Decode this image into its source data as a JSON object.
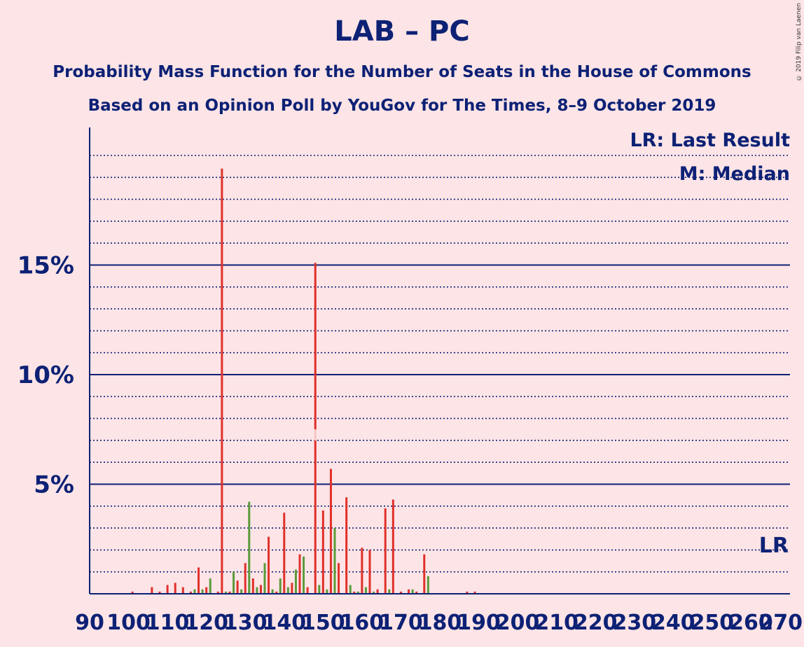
{
  "title": "LAB – PC",
  "subtitle1": "Probability Mass Function for the Number of Seats in the House of Commons",
  "subtitle2": "Based on an Opinion Poll by YouGov for The Times, 8–9 October 2019",
  "copyright": "© 2019 Filip van Laenen",
  "legend": {
    "last_result": "LR: Last Result",
    "median": "M: Median"
  },
  "colors": {
    "background": "#fde4e6",
    "text": "#0d2175",
    "bar_red": "#e0302a",
    "bar_green": "#5a9a3a"
  },
  "chart_data": {
    "type": "bar",
    "xlim": [
      90,
      270
    ],
    "ylim": [
      0,
      21
    ],
    "x_ticks": [
      90,
      100,
      110,
      120,
      130,
      140,
      150,
      160,
      170,
      180,
      190,
      200,
      210,
      220,
      230,
      240,
      250,
      260,
      270
    ],
    "y_ticks": [
      {
        "value": 5,
        "label": "5%"
      },
      {
        "value": 10,
        "label": "10%"
      },
      {
        "value": 15,
        "label": "15%"
      }
    ],
    "y_minor_step": 1,
    "median_seats": 148,
    "last_result_seats": 266,
    "last_result_label": "LR",
    "median_label": "M",
    "bars": [
      {
        "seats": 101,
        "value": 0.1,
        "color": "red"
      },
      {
        "seats": 106,
        "value": 0.3,
        "color": "red"
      },
      {
        "seats": 108,
        "value": 0.1,
        "color": "red"
      },
      {
        "seats": 110,
        "value": 0.4,
        "color": "red"
      },
      {
        "seats": 112,
        "value": 0.5,
        "color": "red"
      },
      {
        "seats": 114,
        "value": 0.3,
        "color": "red"
      },
      {
        "seats": 116,
        "value": 0.1,
        "color": "red"
      },
      {
        "seats": 117,
        "value": 0.2,
        "color": "green"
      },
      {
        "seats": 118,
        "value": 1.2,
        "color": "red"
      },
      {
        "seats": 119,
        "value": 0.2,
        "color": "green"
      },
      {
        "seats": 120,
        "value": 0.3,
        "color": "red"
      },
      {
        "seats": 121,
        "value": 0.7,
        "color": "green"
      },
      {
        "seats": 123,
        "value": 0.1,
        "color": "red"
      },
      {
        "seats": 124,
        "value": 19.4,
        "color": "red"
      },
      {
        "seats": 125,
        "value": 0.1,
        "color": "green"
      },
      {
        "seats": 126,
        "value": 0.1,
        "color": "red"
      },
      {
        "seats": 127,
        "value": 1.0,
        "color": "green"
      },
      {
        "seats": 128,
        "value": 0.6,
        "color": "red"
      },
      {
        "seats": 129,
        "value": 0.2,
        "color": "green"
      },
      {
        "seats": 130,
        "value": 1.4,
        "color": "red"
      },
      {
        "seats": 131,
        "value": 4.2,
        "color": "green"
      },
      {
        "seats": 132,
        "value": 0.7,
        "color": "red"
      },
      {
        "seats": 133,
        "value": 0.3,
        "color": "green"
      },
      {
        "seats": 134,
        "value": 0.4,
        "color": "red"
      },
      {
        "seats": 135,
        "value": 1.4,
        "color": "green"
      },
      {
        "seats": 136,
        "value": 2.6,
        "color": "red"
      },
      {
        "seats": 137,
        "value": 0.2,
        "color": "green"
      },
      {
        "seats": 138,
        "value": 0.1,
        "color": "red"
      },
      {
        "seats": 139,
        "value": 0.7,
        "color": "green"
      },
      {
        "seats": 140,
        "value": 3.7,
        "color": "red"
      },
      {
        "seats": 141,
        "value": 0.3,
        "color": "green"
      },
      {
        "seats": 142,
        "value": 0.5,
        "color": "red"
      },
      {
        "seats": 143,
        "value": 1.1,
        "color": "green"
      },
      {
        "seats": 144,
        "value": 1.8,
        "color": "red"
      },
      {
        "seats": 145,
        "value": 1.7,
        "color": "green"
      },
      {
        "seats": 146,
        "value": 0.3,
        "color": "red"
      },
      {
        "seats": 148,
        "value": 15.1,
        "color": "red"
      },
      {
        "seats": 149,
        "value": 0.4,
        "color": "green"
      },
      {
        "seats": 150,
        "value": 3.8,
        "color": "red"
      },
      {
        "seats": 151,
        "value": 0.2,
        "color": "green"
      },
      {
        "seats": 152,
        "value": 5.7,
        "color": "red"
      },
      {
        "seats": 153,
        "value": 3.0,
        "color": "green"
      },
      {
        "seats": 154,
        "value": 1.4,
        "color": "red"
      },
      {
        "seats": 156,
        "value": 4.4,
        "color": "red"
      },
      {
        "seats": 157,
        "value": 0.4,
        "color": "green"
      },
      {
        "seats": 158,
        "value": 0.1,
        "color": "red"
      },
      {
        "seats": 159,
        "value": 0.1,
        "color": "green"
      },
      {
        "seats": 160,
        "value": 2.1,
        "color": "red"
      },
      {
        "seats": 161,
        "value": 0.3,
        "color": "green"
      },
      {
        "seats": 162,
        "value": 2.0,
        "color": "red"
      },
      {
        "seats": 163,
        "value": 0.1,
        "color": "green"
      },
      {
        "seats": 164,
        "value": 0.2,
        "color": "red"
      },
      {
        "seats": 166,
        "value": 3.9,
        "color": "red"
      },
      {
        "seats": 167,
        "value": 0.2,
        "color": "green"
      },
      {
        "seats": 168,
        "value": 4.3,
        "color": "red"
      },
      {
        "seats": 170,
        "value": 0.1,
        "color": "red"
      },
      {
        "seats": 172,
        "value": 0.2,
        "color": "red"
      },
      {
        "seats": 173,
        "value": 0.2,
        "color": "green"
      },
      {
        "seats": 174,
        "value": 0.1,
        "color": "red"
      },
      {
        "seats": 176,
        "value": 1.8,
        "color": "red"
      },
      {
        "seats": 177,
        "value": 0.8,
        "color": "green"
      },
      {
        "seats": 187,
        "value": 0.1,
        "color": "red"
      },
      {
        "seats": 189,
        "value": 0.1,
        "color": "red"
      }
    ]
  }
}
